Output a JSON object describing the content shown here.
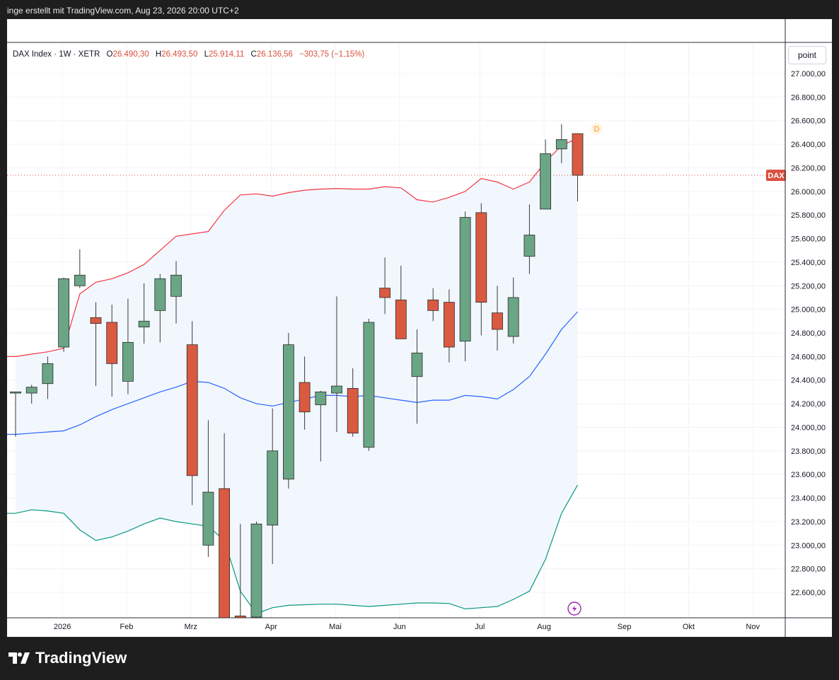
{
  "header": {
    "text": "inge erstellt mit TradingView.com, Aug 23, 2026 20:00 UTC+2"
  },
  "legend": {
    "symbol": "DAX Index · 1W · XETR",
    "open_label": "O",
    "open": "26.490,30",
    "high_label": "H",
    "high": "26.493,50",
    "low_label": "L",
    "low": "25.914,11",
    "close_label": "C",
    "close": "26.136,56",
    "change": "−303,75 (−1,15%)"
  },
  "scale_button": "point",
  "price_tag": {
    "label": "DAX",
    "value": 26136.56
  },
  "dividend_marker": "D",
  "brand": "TradingView",
  "colors": {
    "up": "#6aa586",
    "down": "#d95a41",
    "upper_band": "#f23645",
    "middle_band": "#2962ff",
    "lower_band": "#089981",
    "band_fill": "#f2f7fd",
    "tag": "#d9503e"
  },
  "chart_data": {
    "type": "candlestick",
    "ylim": [
      22400,
      27150
    ],
    "y_ticks": [
      "27.000,00",
      "26.800,00",
      "26.600,00",
      "26.400,00",
      "26.200,00",
      "26.000,00",
      "25.800,00",
      "25.600,00",
      "25.400,00",
      "25.200,00",
      "25.000,00",
      "24.800,00",
      "24.600,00",
      "24.400,00",
      "24.200,00",
      "24.000,00",
      "23.800,00",
      "23.600,00",
      "23.400,00",
      "23.200,00",
      "23.000,00",
      "22.800,00",
      "22.600,00"
    ],
    "y_tick_values": [
      27000,
      26800,
      26600,
      26400,
      26200,
      26000,
      25800,
      25600,
      25400,
      25200,
      25000,
      24800,
      24600,
      24400,
      24200,
      24000,
      23800,
      23600,
      23400,
      23200,
      23000,
      22800,
      22600
    ],
    "x_ticks": [
      {
        "label": "2026",
        "index": 3
      },
      {
        "label": "Feb",
        "index": 7
      },
      {
        "label": "Mrz",
        "index": 11
      },
      {
        "label": "Apr",
        "index": 16
      },
      {
        "label": "Mai",
        "index": 20
      },
      {
        "label": "Jun",
        "index": 24
      },
      {
        "label": "Jul",
        "index": 29
      },
      {
        "label": "Aug",
        "index": 33
      },
      {
        "label": "Sep",
        "index": 38
      },
      {
        "label": "Okt",
        "index": 42
      },
      {
        "label": "Nov",
        "index": 46
      }
    ],
    "candles": [
      {
        "o": 24290,
        "h": 24300,
        "l": 23920,
        "c": 24300
      },
      {
        "o": 24290,
        "h": 24360,
        "l": 24200,
        "c": 24340
      },
      {
        "o": 24370,
        "h": 24600,
        "l": 24240,
        "c": 24540
      },
      {
        "o": 24680,
        "h": 25270,
        "l": 24640,
        "c": 25260
      },
      {
        "o": 25200,
        "h": 25510,
        "l": 25180,
        "c": 25290
      },
      {
        "o": 24930,
        "h": 25060,
        "l": 24350,
        "c": 24880
      },
      {
        "o": 24890,
        "h": 25040,
        "l": 24260,
        "c": 24540
      },
      {
        "o": 24390,
        "h": 25090,
        "l": 24280,
        "c": 24720
      },
      {
        "o": 24850,
        "h": 25220,
        "l": 24710,
        "c": 24900
      },
      {
        "o": 24990,
        "h": 25300,
        "l": 24720,
        "c": 25260
      },
      {
        "o": 25110,
        "h": 25410,
        "l": 24880,
        "c": 25290
      },
      {
        "o": 24700,
        "h": 24900,
        "l": 23340,
        "c": 23590
      },
      {
        "o": 23000,
        "h": 24060,
        "l": 22900,
        "c": 23450
      },
      {
        "o": 23480,
        "h": 23950,
        "l": 22350,
        "c": 22380
      },
      {
        "o": 22400,
        "h": 23180,
        "l": 22350,
        "c": 22380
      },
      {
        "o": 22390,
        "h": 23200,
        "l": 22350,
        "c": 23180
      },
      {
        "o": 23170,
        "h": 24160,
        "l": 22840,
        "c": 23800
      },
      {
        "o": 23560,
        "h": 24800,
        "l": 23480,
        "c": 24700
      },
      {
        "o": 24380,
        "h": 24600,
        "l": 23980,
        "c": 24130
      },
      {
        "o": 24190,
        "h": 24310,
        "l": 23710,
        "c": 24300
      },
      {
        "o": 24290,
        "h": 25110,
        "l": 23960,
        "c": 24350
      },
      {
        "o": 24330,
        "h": 24500,
        "l": 23920,
        "c": 23950
      },
      {
        "o": 23830,
        "h": 24920,
        "l": 23800,
        "c": 24890
      },
      {
        "o": 25180,
        "h": 25440,
        "l": 24960,
        "c": 25100
      },
      {
        "o": 25080,
        "h": 25370,
        "l": 24750,
        "c": 24750
      },
      {
        "o": 24430,
        "h": 24830,
        "l": 24030,
        "c": 24630
      },
      {
        "o": 25080,
        "h": 25180,
        "l": 24900,
        "c": 24990
      },
      {
        "o": 25060,
        "h": 25170,
        "l": 24550,
        "c": 24680
      },
      {
        "o": 24730,
        "h": 25830,
        "l": 24560,
        "c": 25780
      },
      {
        "o": 25820,
        "h": 25900,
        "l": 24780,
        "c": 25060
      },
      {
        "o": 24970,
        "h": 25200,
        "l": 24650,
        "c": 24830
      },
      {
        "o": 24770,
        "h": 25270,
        "l": 24710,
        "c": 25100
      },
      {
        "o": 25450,
        "h": 25890,
        "l": 25300,
        "c": 25630
      },
      {
        "o": 25850,
        "h": 26440,
        "l": 25850,
        "c": 26320
      },
      {
        "o": 26360,
        "h": 26570,
        "l": 26240,
        "c": 26440
      },
      {
        "o": 26490,
        "h": 26494,
        "l": 25914,
        "c": 26137
      }
    ],
    "bands": {
      "upper": [
        24600,
        24620,
        24640,
        24670,
        25130,
        25230,
        25260,
        25310,
        25380,
        25500,
        25620,
        25640,
        25660,
        25840,
        25970,
        25980,
        25960,
        25990,
        26010,
        26020,
        26025,
        26020,
        26020,
        26040,
        26030,
        25930,
        25910,
        25950,
        26000,
        26110,
        26080,
        26020,
        26080,
        26250,
        26390,
        26450
      ],
      "middle": [
        23940,
        23950,
        23960,
        23970,
        24020,
        24090,
        24150,
        24200,
        24250,
        24300,
        24340,
        24390,
        24380,
        24330,
        24250,
        24200,
        24180,
        24210,
        24240,
        24270,
        24270,
        24260,
        24270,
        24250,
        24230,
        24210,
        24230,
        24230,
        24270,
        24260,
        24240,
        24320,
        24430,
        24620,
        24830,
        24980
      ],
      "lower": [
        23270,
        23300,
        23290,
        23270,
        23130,
        23040,
        23070,
        23120,
        23180,
        23230,
        23200,
        23180,
        23160,
        23040,
        22610,
        22420,
        22470,
        22490,
        22495,
        22500,
        22500,
        22490,
        22480,
        22490,
        22500,
        22510,
        22510,
        22505,
        22460,
        22470,
        22480,
        22540,
        22610,
        22880,
        23270,
        23510
      ]
    }
  }
}
